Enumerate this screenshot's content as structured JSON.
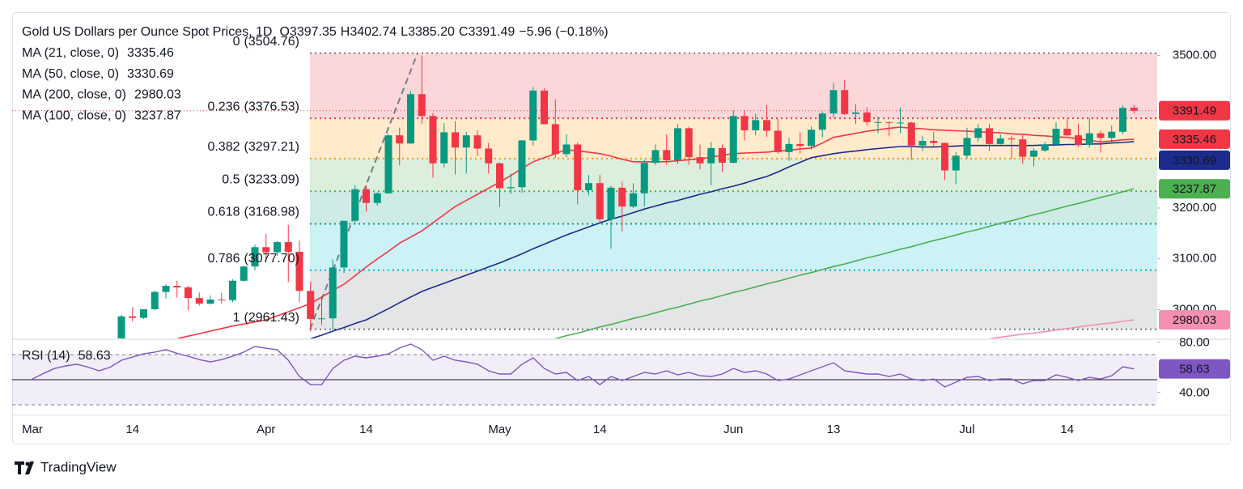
{
  "chart_data": {
    "type": "candlestick",
    "header": {
      "title": "Gold US Dollars per Ounce Spot Prices, 1D",
      "ohlc": [
        {
          "key": "O",
          "label": "3397.35"
        },
        {
          "key": "H",
          "label": "3402.74"
        },
        {
          "key": "L",
          "label": "3385.20"
        },
        {
          "key": "C",
          "label": "3391.49"
        }
      ],
      "change": "−5.96 (−0.18%)"
    },
    "categories": [
      "Mar",
      null,
      null,
      null,
      null,
      null,
      null,
      null,
      null,
      "14",
      null,
      null,
      null,
      null,
      null,
      null,
      null,
      null,
      null,
      null,
      null,
      "Apr",
      null,
      null,
      null,
      null,
      null,
      null,
      null,
      null,
      "14",
      null,
      null,
      null,
      null,
      null,
      null,
      null,
      null,
      null,
      null,
      null,
      "May",
      null,
      null,
      null,
      null,
      null,
      null,
      null,
      null,
      "14",
      null,
      null,
      null,
      null,
      null,
      null,
      null,
      null,
      null,
      null,
      null,
      "Jun",
      null,
      null,
      null,
      null,
      null,
      null,
      null,
      null,
      "13",
      null,
      null,
      null,
      null,
      null,
      null,
      null,
      null,
      null,
      null,
      null,
      "Jul",
      null,
      null,
      null,
      null,
      null,
      null,
      null,
      null,
      "14",
      null,
      null,
      null,
      null,
      null,
      null
    ],
    "open": [
      null,
      null,
      null,
      null,
      null,
      null,
      null,
      null,
      2935,
      2987,
      2984,
      3001,
      3035,
      3047,
      3044,
      3023,
      3012,
      3020,
      3019,
      3057,
      3085,
      3123,
      3113,
      3133,
      3114,
      3037,
      2982,
      2983,
      3083,
      3175,
      3237,
      3210,
      3229,
      3343,
      3327,
      3424,
      3381,
      3288,
      3349,
      3319,
      3343,
      3317,
      3288,
      3239,
      3241,
      3333,
      3431,
      3365,
      3306,
      3325,
      3235,
      3249,
      3178,
      3240,
      3203,
      3229,
      3289,
      3314,
      3294,
      3357,
      3300,
      3288,
      3318,
      3289,
      3381,
      3353,
      3373,
      3352,
      3310,
      3326,
      3322,
      3354,
      3386,
      3432,
      3385,
      3388,
      3369,
      3369,
      3368,
      3368,
      3323,
      3332,
      3328,
      3274,
      3303,
      3338,
      3357,
      3326,
      3337,
      3335,
      3301,
      3313,
      3325,
      3356,
      3343,
      3324,
      3347,
      3338,
      3350,
      3397.35
    ],
    "high": [
      null,
      null,
      null,
      null,
      null,
      null,
      null,
      null,
      2990,
      3005,
      3001,
      3038,
      3050,
      3057,
      3047,
      3034,
      3028,
      3033,
      3060,
      3087,
      3128,
      3149,
      3135,
      3167,
      3136,
      3055,
      3023,
      3099,
      3175,
      3245,
      3245,
      3231,
      3346,
      3358,
      3430,
      3500,
      3387,
      3367,
      3371,
      3350,
      3353,
      3328,
      3290,
      3268,
      3334,
      3438,
      3435,
      3414,
      3345,
      3329,
      3265,
      3265,
      3244,
      3252,
      3249,
      3295,
      3325,
      3345,
      3365,
      3360,
      3325,
      3330,
      3325,
      3392,
      3392,
      3385,
      3403,
      3375,
      3338,
      3349,
      3360,
      3390,
      3446,
      3452,
      3404,
      3398,
      3380,
      3370,
      3398,
      3370,
      3342,
      3350,
      3329,
      3310,
      3358,
      3365,
      3366,
      3345,
      3342,
      3345,
      3318,
      3330,
      3369,
      3375,
      3366,
      3377,
      3352,
      3362,
      3402,
      3402.74
    ],
    "low": [
      null,
      null,
      null,
      null,
      null,
      null,
      null,
      null,
      2932,
      2977,
      2982,
      2999,
      3022,
      3024,
      2999,
      3008,
      3010,
      3012,
      3015,
      3055,
      3077,
      3100,
      3106,
      3054,
      3015,
      2957,
      2970,
      2957,
      3072,
      3170,
      3193,
      3205,
      3228,
      3284,
      3326,
      3366,
      3260,
      3280,
      3266,
      3268,
      3302,
      3268,
      3202,
      3228,
      3230,
      3323,
      3365,
      3298,
      3300,
      3207,
      3225,
      3172,
      3120,
      3154,
      3200,
      3203,
      3285,
      3285,
      3287,
      3285,
      3276,
      3245,
      3271,
      3288,
      3333,
      3343,
      3340,
      3307,
      3293,
      3307,
      3315,
      3339,
      3378,
      3383,
      3365,
      3362,
      3347,
      3341,
      3347,
      3295,
      3312,
      3318,
      3255,
      3247,
      3297,
      3331,
      3312,
      3325,
      3296,
      3287,
      3282,
      3310,
      3322,
      3341,
      3320,
      3319,
      3309,
      3330,
      3345,
      3385.2
    ],
    "close": [
      null,
      null,
      null,
      null,
      null,
      null,
      null,
      null,
      2987,
      2984,
      3001,
      3035,
      3047,
      3044,
      3023,
      3012,
      3020,
      3019,
      3057,
      3085,
      3123,
      3113,
      3133,
      3114,
      3037,
      2982,
      2983,
      3083,
      3175,
      3237,
      3210,
      3229,
      3343,
      3327,
      3424,
      3381,
      3288,
      3349,
      3319,
      3343,
      3317,
      3288,
      3239,
      3241,
      3333,
      3431,
      3365,
      3306,
      3325,
      3235,
      3249,
      3178,
      3240,
      3203,
      3229,
      3289,
      3314,
      3294,
      3357,
      3300,
      3288,
      3318,
      3289,
      3381,
      3353,
      3373,
      3352,
      3310,
      3326,
      3322,
      3354,
      3386,
      3432,
      3385,
      3388,
      3369,
      3369,
      3368,
      3368,
      3323,
      3332,
      3328,
      3274,
      3303,
      3338,
      3357,
      3326,
      3337,
      3335,
      3301,
      3313,
      3325,
      3356,
      3343,
      3324,
      3347,
      3338,
      3350,
      3397,
      3391.49
    ],
    "up_color": "#089981",
    "down_color": "#f23645",
    "series": [
      {
        "name": "MA (21, close, 0)",
        "color": "#f23645",
        "label_text": "#ffffff",
        "values": [
          null,
          null,
          null,
          null,
          null,
          null,
          null,
          null,
          null,
          null,
          null,
          null,
          null,
          2943,
          2948,
          2953,
          2958,
          2963,
          2968,
          2972,
          2976,
          2980,
          2988,
          2996,
          3004,
          3012,
          3025,
          3038,
          3050,
          3067,
          3084,
          3100,
          3115,
          3131,
          3143,
          3155,
          3171,
          3187,
          3203,
          3215,
          3227,
          3239,
          3251,
          3264,
          3278,
          3291,
          3299,
          3307,
          3315,
          3312,
          3310,
          3307,
          3302,
          3296,
          3291,
          3291,
          3291,
          3291,
          3293,
          3295,
          3297,
          3300,
          3304,
          3307,
          3308,
          3309,
          3310,
          3312,
          3314,
          3316,
          3318,
          3328,
          3339,
          3343,
          3347,
          3351,
          3354,
          3357,
          3359,
          3357,
          3356,
          3354,
          3353,
          3352,
          3351,
          3350,
          3349,
          3348,
          3346,
          3345,
          3343,
          3342,
          3340,
          3339,
          3336,
          3333,
          3330,
          3332,
          3334,
          3335.46
        ]
      },
      {
        "name": "MA (50, close, 0)",
        "color": "#1c2b8c",
        "label_text": "#ffffff",
        "values": [
          null,
          null,
          null,
          null,
          null,
          null,
          null,
          null,
          null,
          null,
          null,
          null,
          null,
          null,
          null,
          null,
          null,
          null,
          null,
          null,
          null,
          null,
          null,
          null,
          null,
          2943,
          2950,
          2958,
          2965,
          2973,
          2980,
          2991,
          3002,
          3014,
          3025,
          3036,
          3044,
          3052,
          3060,
          3068,
          3076,
          3084,
          3092,
          3101,
          3110,
          3120,
          3129,
          3138,
          3147,
          3155,
          3163,
          3171,
          3178,
          3184,
          3191,
          3198,
          3204,
          3210,
          3215,
          3221,
          3227,
          3232,
          3238,
          3243,
          3249,
          3256,
          3262,
          3271,
          3281,
          3290,
          3299,
          3303,
          3307,
          3310,
          3312,
          3315,
          3317,
          3319,
          3321,
          3321,
          3320,
          3320,
          3321,
          3322,
          3323,
          3323,
          3323,
          3323,
          3323,
          3323,
          3323,
          3324,
          3324,
          3325,
          3325,
          3326,
          3326,
          3328,
          3329,
          3330.69
        ]
      },
      {
        "name": "MA (200, close, 0)",
        "color": "#f48fb1",
        "label_text": "#131722",
        "values": [
          null,
          null,
          null,
          null,
          null,
          null,
          null,
          null,
          null,
          null,
          null,
          null,
          null,
          null,
          null,
          null,
          null,
          null,
          null,
          null,
          null,
          null,
          null,
          null,
          null,
          null,
          null,
          null,
          null,
          null,
          null,
          null,
          null,
          null,
          null,
          null,
          null,
          null,
          null,
          null,
          null,
          null,
          null,
          null,
          null,
          null,
          null,
          null,
          null,
          null,
          null,
          null,
          null,
          null,
          null,
          null,
          null,
          null,
          null,
          null,
          null,
          null,
          null,
          null,
          null,
          null,
          null,
          null,
          null,
          null,
          null,
          null,
          null,
          null,
          null,
          null,
          null,
          null,
          null,
          null,
          null,
          null,
          null,
          null,
          null,
          null,
          2943,
          2946,
          2949,
          2952,
          2954,
          2957,
          2960,
          2963,
          2966,
          2969,
          2972,
          2974,
          2977,
          2980.03
        ]
      },
      {
        "name": "MA (100, close, 0)",
        "color": "#4caf50",
        "label_text": "#ffffff",
        "values": [
          null,
          null,
          null,
          null,
          null,
          null,
          null,
          null,
          null,
          null,
          null,
          null,
          null,
          null,
          null,
          null,
          null,
          null,
          null,
          null,
          null,
          null,
          null,
          null,
          null,
          null,
          null,
          null,
          null,
          null,
          null,
          null,
          null,
          null,
          null,
          null,
          null,
          null,
          null,
          null,
          null,
          null,
          null,
          null,
          null,
          null,
          null,
          2943,
          2949,
          2954,
          2960,
          2966,
          2971,
          2977,
          2983,
          2988,
          2994,
          3000,
          3005,
          3011,
          3017,
          3022,
          3028,
          3034,
          3039,
          3045,
          3051,
          3056,
          3062,
          3068,
          3073,
          3079,
          3085,
          3090,
          3096,
          3102,
          3107,
          3113,
          3119,
          3124,
          3130,
          3136,
          3141,
          3147,
          3153,
          3158,
          3164,
          3170,
          3175,
          3181,
          3187,
          3192,
          3198,
          3204,
          3209,
          3215,
          3221,
          3226,
          3232,
          3237.87
        ]
      }
    ],
    "ylim": [
      2943.6,
      3564.6
    ],
    "yticks": [
      {
        "value": 3000,
        "label": "3000.00"
      },
      {
        "value": 3100,
        "label": "3100.00"
      },
      {
        "value": 3200,
        "label": "3200.00"
      },
      {
        "value": 3500,
        "label": "3500.00"
      }
    ],
    "fib": {
      "levels": [
        {
          "ratio": "0",
          "value": 3504.76,
          "value_label": "(3504.76)",
          "color": "#787b86"
        },
        {
          "ratio": "0.236",
          "value": 3376.53,
          "value_label": "(3376.53)",
          "color": "#f23645"
        },
        {
          "ratio": "0.382",
          "value": 3297.21,
          "value_label": "(3297.21)",
          "color": "#ff9800"
        },
        {
          "ratio": "0.5",
          "value": 3233.09,
          "value_label": "(3233.09)",
          "color": "#4caf50"
        },
        {
          "ratio": "0.618",
          "value": 3168.98,
          "value_label": "(3168.98)",
          "color": "#089981"
        },
        {
          "ratio": "0.786",
          "value": 3077.7,
          "value_label": "(3077.70)",
          "color": "#00bcd4"
        },
        {
          "ratio": "1",
          "value": 2961.43,
          "value_label": "(2961.43)",
          "color": "#787b86"
        }
      ]
    },
    "rsi": {
      "name": "RSI (14)",
      "color": "#7e57c2",
      "values": [
        50.6,
        55,
        59,
        61,
        62.3,
        60,
        57.1,
        60,
        65.5,
        68,
        70.6,
        72,
        73.9,
        71,
        68.7,
        66,
        64.2,
        66,
        68.7,
        72,
        76.5,
        75,
        73.9,
        65.5,
        52.6,
        46.1,
        46.1,
        59,
        65.5,
        68.7,
        67.4,
        68.7,
        70.6,
        75.2,
        78.4,
        73.9,
        65.5,
        68.7,
        65.5,
        64.2,
        62.3,
        57.1,
        54.5,
        54.5,
        62.3,
        67.4,
        59,
        54.5,
        55.8,
        49.4,
        52.6,
        46.1,
        52.6,
        49.4,
        52.6,
        55.8,
        54.5,
        57.1,
        53.9,
        55.8,
        53.2,
        52.6,
        54.5,
        59,
        55.8,
        57.1,
        54.5,
        49.4,
        50.6,
        53.9,
        57.1,
        60.3,
        63.5,
        57.1,
        55.8,
        54.5,
        54.5,
        52.6,
        54.5,
        50.6,
        49.4,
        50.6,
        44.2,
        48.1,
        51.9,
        52.6,
        49.4,
        50.6,
        50.6,
        46.8,
        49.4,
        49.4,
        53.9,
        51.9,
        49.4,
        51.9,
        50.6,
        53.2,
        60.3,
        58.63
      ],
      "ylim": [
        22.3,
        81.6
      ],
      "yticks": [
        {
          "value": 40,
          "label": "40.00"
        },
        {
          "value": 80,
          "label": "80.00"
        }
      ],
      "levels": [
        70,
        50,
        30
      ],
      "level_styles": [
        "dashed",
        "solid",
        "dashed"
      ]
    },
    "footer": {
      "brand": "TradingView"
    }
  }
}
